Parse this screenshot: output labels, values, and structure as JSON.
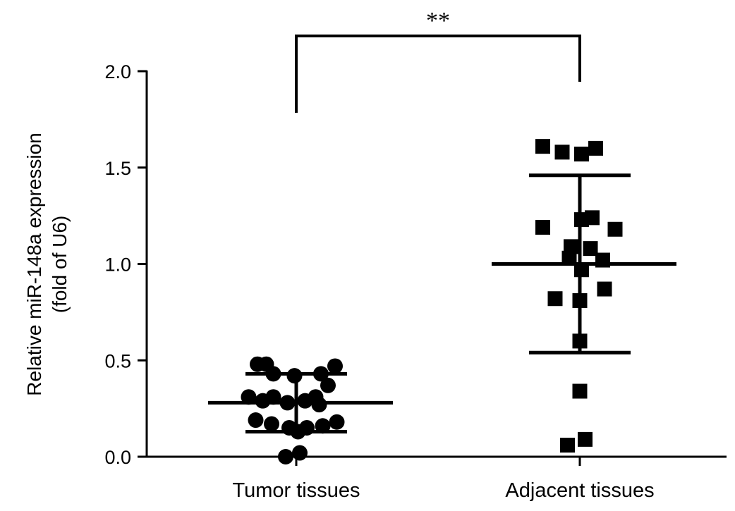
{
  "chart_data": {
    "type": "scatter",
    "title": "",
    "xlabel": "",
    "ylabel_lines": [
      "Relative miR-148a expression",
      "(fold of U6)"
    ],
    "ylim": [
      0,
      2.0
    ],
    "yticks": [
      0.0,
      0.5,
      1.0,
      1.5,
      2.0
    ],
    "ytick_labels": [
      "0.0",
      "0.5",
      "1.0",
      "1.5",
      "2.0"
    ],
    "grid": false,
    "categories": [
      "Tumor tissues",
      "Adjacent tissues"
    ],
    "series": [
      {
        "marker": "circle",
        "category": "Tumor tissues",
        "values": [
          0.48,
          0.48,
          0.43,
          0.42,
          0.43,
          0.47,
          0.37,
          0.31,
          0.31,
          0.29,
          0.28,
          0.29,
          0.31,
          0.27,
          0.19,
          0.17,
          0.15,
          0.15,
          0.13,
          0.16,
          0.18,
          0.0,
          0.02
        ],
        "x_offsets": [
          -0.22,
          -0.17,
          -0.13,
          -0.01,
          0.14,
          0.22,
          0.18,
          -0.27,
          0.11,
          -0.19,
          -0.05,
          0.05,
          -0.13,
          0.13,
          -0.23,
          -0.14,
          -0.04,
          0.06,
          0.01,
          0.15,
          0.23,
          -0.06,
          0.02
        ],
        "mean": 0.28,
        "sd_upper": 0.43,
        "sd_lower": 0.13
      },
      {
        "marker": "square",
        "category": "Adjacent tissues",
        "values": [
          1.61,
          1.58,
          1.57,
          1.6,
          1.19,
          1.23,
          1.24,
          1.18,
          1.09,
          1.08,
          1.03,
          1.02,
          0.97,
          0.87,
          0.82,
          0.81,
          0.6,
          0.34,
          0.06,
          0.09
        ],
        "x_offsets": [
          -0.21,
          -0.1,
          0.01,
          0.09,
          -0.21,
          0.01,
          0.07,
          0.2,
          -0.05,
          0.06,
          -0.06,
          0.13,
          0.01,
          0.14,
          -0.14,
          0.0,
          0.0,
          0.0,
          -0.07,
          0.03
        ],
        "mean": 1.0,
        "sd_upper": 1.46,
        "sd_lower": 0.54
      }
    ],
    "annotations": [
      {
        "type": "significance",
        "text": "**",
        "between": [
          "Tumor tissues",
          "Adjacent tissues"
        ]
      }
    ]
  }
}
